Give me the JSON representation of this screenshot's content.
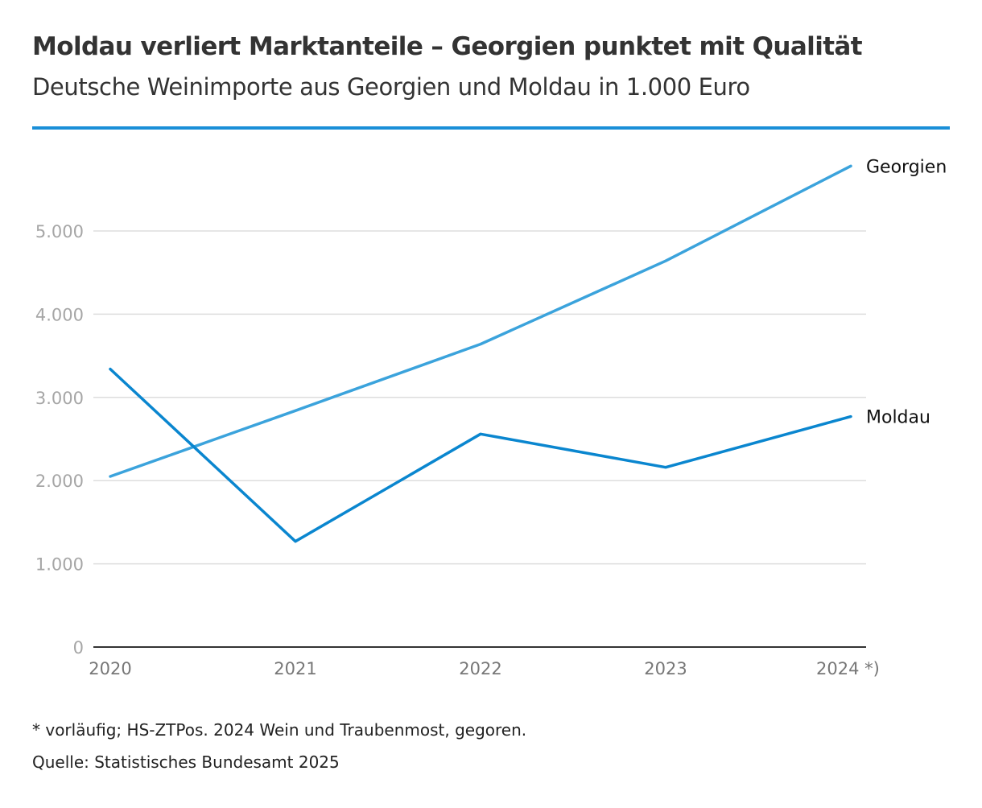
{
  "title": "Moldau verliert Marktanteile – Georgien punktet mit Qualität",
  "subtitle": "Deutsche Weinimporte aus Georgien und Moldau in 1.000 Euro",
  "colors": {
    "accent_rule": "#1a8fd8",
    "georgien": "#3ba3dc",
    "moldau": "#0a86cf",
    "grid": "#dddddd",
    "axis": "#333333"
  },
  "footnote": "* vorläufig; HS-ZTPos. 2024 Wein und Traubenmost, gegoren.",
  "source": "Quelle: Statistisches Bundesamt 2025",
  "chart_data": {
    "type": "line",
    "categories": [
      "2020",
      "2021",
      "2022",
      "2023",
      "2024 *)"
    ],
    "x": [
      2020,
      2021,
      2022,
      2023,
      2024
    ],
    "ylim": [
      0,
      5800
    ],
    "yticks": [
      0,
      1000,
      2000,
      3000,
      4000,
      5000
    ],
    "ytick_labels": [
      "0",
      "1.000",
      "2.000",
      "3.000",
      "4.000",
      "5.000"
    ],
    "grid": true,
    "legend": "direct labels at line ends (right)",
    "series": [
      {
        "name": "Georgien",
        "values": [
          2050,
          2840,
          3640,
          4640,
          5780
        ]
      },
      {
        "name": "Moldau",
        "values": [
          3340,
          1270,
          2560,
          2160,
          2770
        ]
      }
    ]
  }
}
